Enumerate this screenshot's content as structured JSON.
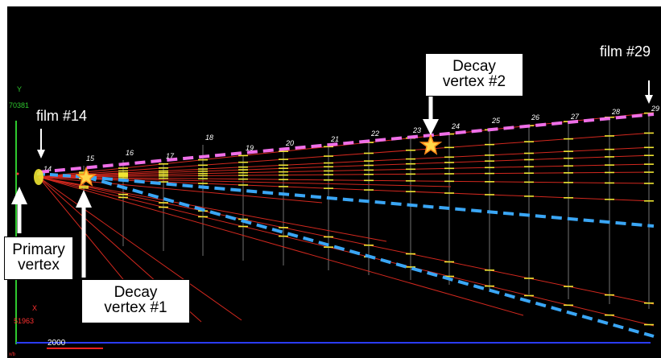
{
  "axis": {
    "y_label": "Y",
    "y_value": "70381",
    "x_label": "X",
    "x_value": "51963",
    "scale_value": "2000",
    "x_sub_label": "x/b"
  },
  "films": [
    "14",
    "15",
    "16",
    "17",
    "18",
    "19",
    "20",
    "21",
    "22",
    "23",
    "24",
    "25",
    "26",
    "27",
    "28",
    "29"
  ],
  "annotations": {
    "film_14": "film #14",
    "film_29": "film #29",
    "primary_vertex": [
      "Primary",
      "vertex"
    ],
    "decay_vertex_1": [
      "Decay",
      "vertex #1"
    ],
    "decay_vertex_2": [
      "Decay",
      "vertex #2"
    ]
  },
  "colors": {
    "background": "#000000",
    "track": "#d2281e",
    "segment": "#f0e632",
    "film_line": "#bfbfbf",
    "axis_y": "#2ec82e",
    "axis_x": "#2a3cff",
    "scale_bar": "#ff2020",
    "decay_track_1": "#3aa6f5",
    "decay_track_2": "#ef6fe8",
    "star_fill": "#ffd84a",
    "star_stroke": "#ff8a1a"
  }
}
